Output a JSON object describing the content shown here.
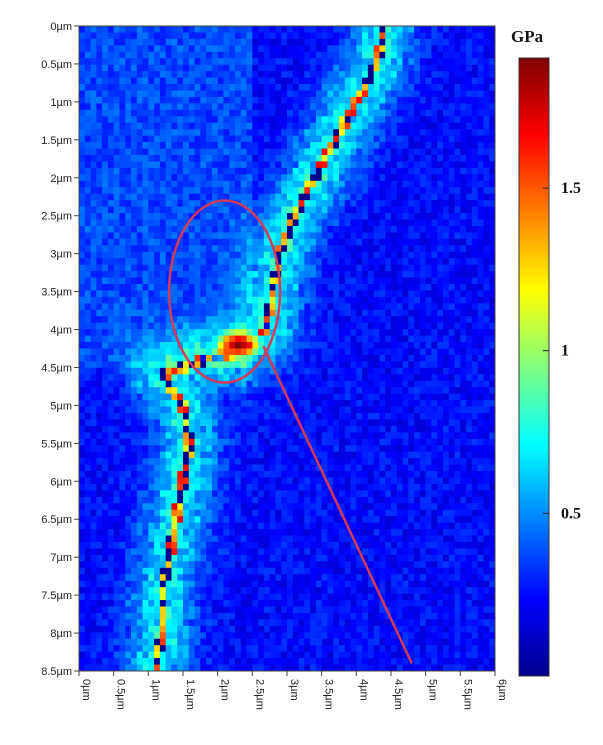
{
  "chart_data": {
    "type": "heatmap",
    "title": "",
    "xlabel": "",
    "ylabel": "",
    "x_ticks": [
      "0µm",
      "0.5µm",
      "1µm",
      "1.5µm",
      "2µm",
      "2.5µm",
      "3µm",
      "3.5µm",
      "4µm",
      "4.5µm",
      "5µm",
      "5.5µm",
      "6µm"
    ],
    "y_ticks": [
      "0µm",
      "0.5µm",
      "1µm",
      "1.5µm",
      "2µm",
      "2.5µm",
      "3µm",
      "3.5µm",
      "4µm",
      "4.5µm",
      "5µm",
      "5.5µm",
      "6µm",
      "6.5µm",
      "7µm",
      "7.5µm",
      "8µm",
      "8.5µm"
    ],
    "x_range_um": [
      0,
      6
    ],
    "y_range_um": [
      0,
      8.5
    ],
    "colorbar": {
      "unit": "GPa",
      "tick_labels": [
        "1.5",
        "1",
        "0.5"
      ],
      "tick_values": [
        1.5,
        1.0,
        0.5
      ],
      "range": [
        0,
        1.9
      ]
    },
    "colormap": "jet",
    "grid": false,
    "features": {
      "background_modulus_gpa": 0.25,
      "boundary_band_modulus_gpa": 0.7,
      "crack_path_um": [
        [
          4.4,
          0.0
        ],
        [
          4.3,
          0.5
        ],
        [
          4.0,
          1.0
        ],
        [
          3.7,
          1.5
        ],
        [
          3.4,
          2.0
        ],
        [
          3.1,
          2.5
        ],
        [
          2.9,
          3.0
        ],
        [
          2.8,
          3.5
        ],
        [
          2.7,
          4.0
        ],
        [
          2.3,
          4.3
        ],
        [
          1.8,
          4.4
        ],
        [
          1.2,
          4.6
        ],
        [
          1.5,
          5.0
        ],
        [
          1.6,
          5.5
        ],
        [
          1.5,
          6.0
        ],
        [
          1.4,
          6.5
        ],
        [
          1.3,
          7.0
        ],
        [
          1.2,
          7.5
        ],
        [
          1.2,
          8.0
        ],
        [
          1.1,
          8.5
        ]
      ],
      "hotspot_um": [
        2.3,
        4.2
      ],
      "hotspot_modulus_gpa": 1.85
    },
    "annotations": {
      "ellipse_center_um": [
        2.1,
        3.5
      ],
      "ellipse_radii_um": [
        0.8,
        1.2
      ],
      "leader_line_end_um": [
        4.8,
        8.4
      ],
      "color": "#d23a5a"
    }
  }
}
